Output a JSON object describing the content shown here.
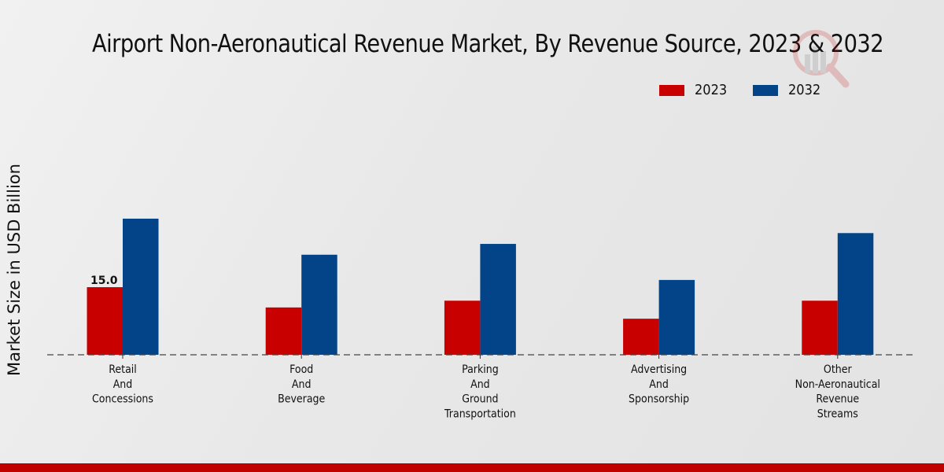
{
  "chart_data": {
    "type": "bar",
    "title": "Airport Non-Aeronautical Revenue Market, By Revenue Source, 2023 & 2032",
    "xlabel": "",
    "ylabel": "Market Size in USD Billion",
    "categories": [
      [
        "Retail",
        "And",
        "Concessions"
      ],
      [
        "Food",
        "And",
        "Beverage"
      ],
      [
        "Parking",
        "And",
        "Ground",
        "Transportation"
      ],
      [
        "Advertising",
        "And",
        "Sponsorship"
      ],
      [
        "Other",
        "Non-Aeronautical",
        "Revenue",
        "Streams"
      ]
    ],
    "series": [
      {
        "name": "2023",
        "color": "#c80000",
        "values": [
          15.0,
          10.5,
          12.0,
          8.0,
          12.0
        ]
      },
      {
        "name": "2032",
        "color": "#034488",
        "values": [
          30.2,
          22.2,
          24.6,
          16.6,
          27.0
        ]
      }
    ],
    "data_labels": [
      {
        "series": 0,
        "index": 0,
        "text": "15.0"
      }
    ],
    "ylim": [
      0,
      35
    ],
    "grid": false,
    "baseline_style": "dashed",
    "legend": {
      "position": "top-right"
    }
  },
  "theme": {
    "accent": "#c00000"
  }
}
